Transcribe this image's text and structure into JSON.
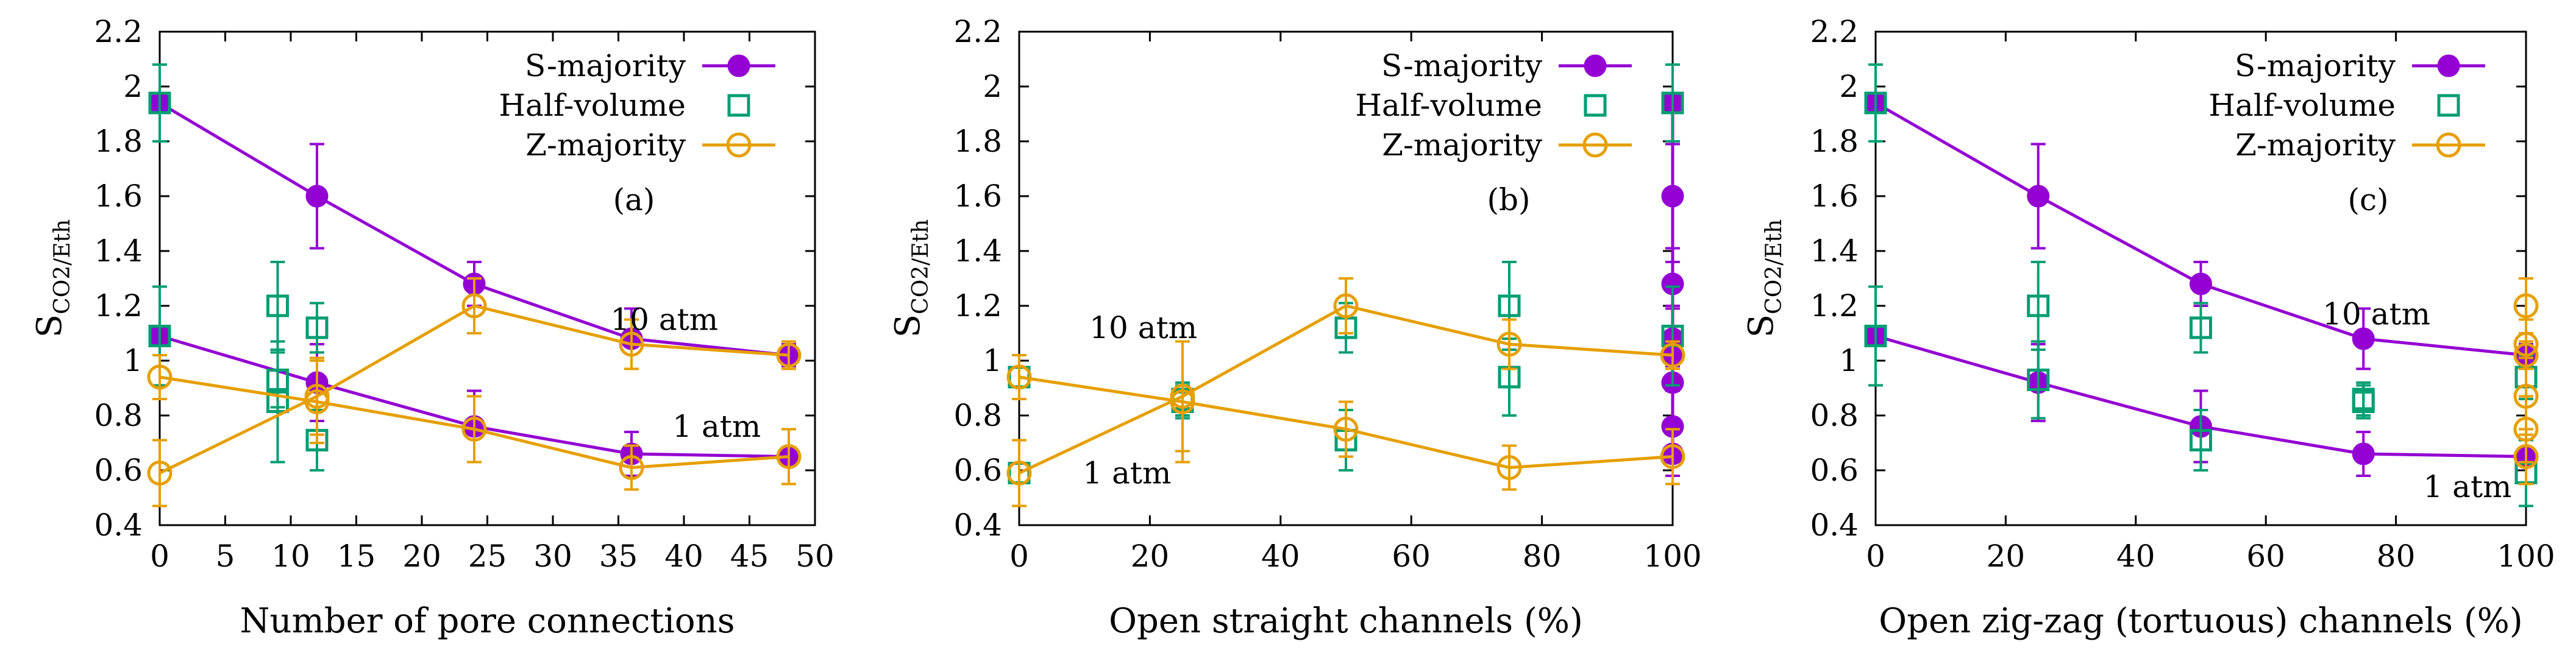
{
  "colors": {
    "s_majority": "#9400d3",
    "half_volume": "#009e73",
    "z_majority": "#e69f00",
    "axis": "#000000"
  },
  "chart_data": [
    {
      "type": "line",
      "panel_label": "(a)",
      "xlabel": "Number of pore connections",
      "ylabel": {
        "main": "S",
        "sub": "CO2/Eth"
      },
      "xlim": [
        0,
        50
      ],
      "ylim": [
        0.4,
        2.2
      ],
      "xticks": [
        0,
        5,
        10,
        15,
        20,
        25,
        30,
        35,
        40,
        45,
        50
      ],
      "xtick_labels": [
        "0",
        "5",
        "10",
        "15",
        "20",
        "25",
        "30",
        "35",
        "40",
        "45",
        "50"
      ],
      "yticks": [
        0.4,
        0.6,
        0.8,
        1.0,
        1.2,
        1.4,
        1.6,
        1.8,
        2.0,
        2.2
      ],
      "ytick_labels": [
        "0.4",
        "0.6",
        "0.8",
        "1",
        "1.2",
        "1.4",
        "1.6",
        "1.8",
        "2",
        "2.2"
      ],
      "legend": [
        "S-majority",
        "Half-volume",
        "Z-majority"
      ],
      "annotations": [
        {
          "text": "10 atm",
          "x": 38.5,
          "y": 1.15
        },
        {
          "text": "1 atm",
          "x": 42.5,
          "y": 0.76
        }
      ],
      "series": [
        {
          "name": "S-majority",
          "pressure": "10 atm",
          "x": [
            0,
            12,
            24,
            36,
            48
          ],
          "y": [
            1.94,
            1.6,
            1.28,
            1.08,
            1.02
          ],
          "err": [
            0.14,
            0.19,
            0.08,
            0.11,
            0.04
          ]
        },
        {
          "name": "S-majority",
          "pressure": "1 atm",
          "x": [
            0,
            12,
            24,
            36,
            48
          ],
          "y": [
            1.09,
            0.92,
            0.76,
            0.66,
            0.65
          ],
          "err": [
            0.18,
            0.14,
            0.13,
            0.08,
            0.1
          ]
        },
        {
          "name": "Half-volume",
          "pressure": "10 atm",
          "x": [
            0,
            9,
            12
          ],
          "y": [
            1.94,
            1.2,
            1.12
          ],
          "err": [
            0.14,
            0.16,
            0.09
          ]
        },
        {
          "name": "Half-volume",
          "pressure": "1 atm",
          "x": [
            0,
            9,
            12
          ],
          "y": [
            1.09,
            0.85,
            0.71
          ],
          "err": [
            0.18,
            0.22,
            0.11
          ]
        },
        {
          "name": "Half-volume",
          "pressure": "extra",
          "x": [
            9
          ],
          "y": [
            0.93
          ],
          "err": [
            0.1
          ]
        },
        {
          "name": "Z-majority",
          "pressure": "10 atm",
          "x": [
            0,
            12,
            24,
            36,
            48
          ],
          "y": [
            0.59,
            0.87,
            1.2,
            1.06,
            1.02
          ],
          "err": [
            0.12,
            0.14,
            0.1,
            0.09,
            0.05
          ]
        },
        {
          "name": "Z-majority",
          "pressure": "1 atm",
          "x": [
            0,
            12,
            24,
            36,
            48
          ],
          "y": [
            0.94,
            0.85,
            0.75,
            0.61,
            0.65
          ],
          "err": [
            0.08,
            0.15,
            0.12,
            0.08,
            0.1
          ]
        }
      ]
    },
    {
      "type": "line",
      "panel_label": "(b)",
      "xlabel": "Open straight channels (%)",
      "ylabel": {
        "main": "S",
        "sub": "CO2/Eth"
      },
      "xlim": [
        0,
        100
      ],
      "ylim": [
        0.4,
        2.2
      ],
      "xticks": [
        0,
        20,
        40,
        60,
        80,
        100
      ],
      "xtick_labels": [
        "0",
        "20",
        "40",
        "60",
        "80",
        "100"
      ],
      "yticks": [
        0.4,
        0.6,
        0.8,
        1.0,
        1.2,
        1.4,
        1.6,
        1.8,
        2.0,
        2.2
      ],
      "ytick_labels": [
        "0.4",
        "0.6",
        "0.8",
        "1",
        "1.2",
        "1.4",
        "1.6",
        "1.8",
        "2",
        "2.2"
      ],
      "legend": [
        "S-majority",
        "Half-volume",
        "Z-majority"
      ],
      "annotations": [
        {
          "text": "10 atm",
          "x": 19,
          "y": 1.12
        },
        {
          "text": "1 atm",
          "x": 16.5,
          "y": 0.59
        }
      ],
      "series": [
        {
          "name": "S-majority",
          "pressure": "all",
          "x": [
            100,
            100,
            100,
            100,
            100,
            100,
            100,
            100
          ],
          "y": [
            1.94,
            1.6,
            1.28,
            1.08,
            1.02,
            0.92,
            0.76,
            0.66
          ],
          "err": [
            0.14,
            0.19,
            0.08,
            0.11,
            0.04,
            0.14,
            0.13,
            0.08
          ]
        },
        {
          "name": "Half-volume",
          "pressure": "10 atm",
          "x": [
            0,
            25,
            50,
            75,
            100
          ],
          "y": [
            0.94,
            0.86,
            1.12,
            1.2,
            1.94
          ],
          "err": [
            0.08,
            0.06,
            0.09,
            0.16,
            0.14
          ]
        },
        {
          "name": "Half-volume",
          "pressure": "1 atm",
          "x": [
            0,
            25,
            50,
            75,
            100
          ],
          "y": [
            0.59,
            0.85,
            0.71,
            0.94,
            1.09
          ],
          "err": [
            0.12,
            0.06,
            0.11,
            0.14,
            0.18
          ]
        },
        {
          "name": "Z-majority",
          "pressure": "10 atm",
          "x": [
            0,
            25,
            50,
            75,
            100
          ],
          "y": [
            0.59,
            0.87,
            1.2,
            1.06,
            1.02
          ],
          "err": [
            0.12,
            0.2,
            0.1,
            0.09,
            0.05
          ]
        },
        {
          "name": "Z-majority",
          "pressure": "1 atm",
          "x": [
            0,
            25,
            50,
            75,
            100
          ],
          "y": [
            0.94,
            0.85,
            0.75,
            0.61,
            0.65
          ],
          "err": [
            0.08,
            0.22,
            0.1,
            0.08,
            0.1
          ]
        }
      ]
    },
    {
      "type": "line",
      "panel_label": "(c)",
      "xlabel": "Open zig-zag (tortuous) channels (%)",
      "ylabel": {
        "main": "S",
        "sub": "CO2/Eth"
      },
      "xlim": [
        0,
        100
      ],
      "ylim": [
        0.4,
        2.2
      ],
      "xticks": [
        0,
        20,
        40,
        60,
        80,
        100
      ],
      "xtick_labels": [
        "0",
        "20",
        "40",
        "60",
        "80",
        "100"
      ],
      "yticks": [
        0.4,
        0.6,
        0.8,
        1.0,
        1.2,
        1.4,
        1.6,
        1.8,
        2.0,
        2.2
      ],
      "ytick_labels": [
        "0.4",
        "0.6",
        "0.8",
        "1",
        "1.2",
        "1.4",
        "1.6",
        "1.8",
        "2",
        "2.2"
      ],
      "legend": [
        "S-majority",
        "Half-volume",
        "Z-majority"
      ],
      "annotations": [
        {
          "text": "10 atm",
          "x": 77,
          "y": 1.17
        },
        {
          "text": "1 atm",
          "x": 91,
          "y": 0.54
        }
      ],
      "series": [
        {
          "name": "S-majority",
          "pressure": "10 atm",
          "x": [
            0,
            25,
            50,
            75,
            100
          ],
          "y": [
            1.94,
            1.6,
            1.28,
            1.08,
            1.02
          ],
          "err": [
            0.14,
            0.19,
            0.08,
            0.11,
            0.04
          ]
        },
        {
          "name": "S-majority",
          "pressure": "1 atm",
          "x": [
            0,
            25,
            50,
            75,
            100
          ],
          "y": [
            1.09,
            0.92,
            0.76,
            0.66,
            0.65
          ],
          "err": [
            0.18,
            0.14,
            0.13,
            0.08,
            0.1
          ]
        },
        {
          "name": "Half-volume",
          "pressure": "10 atm",
          "x": [
            0,
            25,
            50,
            75,
            100
          ],
          "y": [
            1.94,
            1.2,
            1.12,
            0.86,
            0.94
          ],
          "err": [
            0.14,
            0.16,
            0.09,
            0.06,
            0.08
          ]
        },
        {
          "name": "Half-volume",
          "pressure": "1 atm",
          "x": [
            0,
            25,
            50,
            75,
            100
          ],
          "y": [
            1.09,
            0.93,
            0.71,
            0.85,
            0.59
          ],
          "err": [
            0.18,
            0.14,
            0.11,
            0.06,
            0.12
          ]
        },
        {
          "name": "Z-majority",
          "pressure": "points",
          "x": [
            100,
            100,
            100,
            100,
            100,
            100
          ],
          "y": [
            1.2,
            1.06,
            1.02,
            0.87,
            0.75,
            0.65
          ],
          "err": [
            0.1,
            0.09,
            0.05,
            0.14,
            0.12,
            0.1
          ]
        }
      ]
    }
  ]
}
